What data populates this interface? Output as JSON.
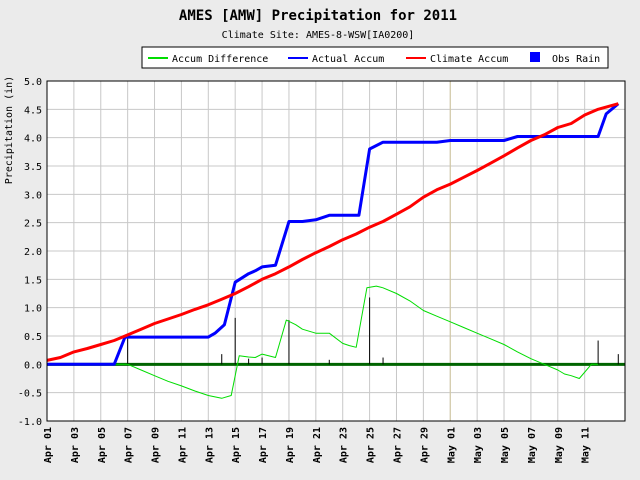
{
  "chart_data": {
    "type": "line",
    "title": "AMES [AMW] Precipitation for 2011",
    "subtitle": "Climate Site: AMES-8-WSW[IA0200]",
    "ylabel": "Precipitation (in)",
    "xlabel": "",
    "ylim": [
      -1.0,
      5.0
    ],
    "yticks": [
      "-1.0",
      "-0.5",
      "0.0",
      "0.5",
      "1.0",
      "1.5",
      "2.0",
      "2.5",
      "3.0",
      "3.5",
      "4.0",
      "4.5",
      "5.0"
    ],
    "xlim_days": [
      1,
      42
    ],
    "xticks": [
      {
        "day": 1,
        "label": "Apr 01"
      },
      {
        "day": 3,
        "label": "Apr 03"
      },
      {
        "day": 5,
        "label": "Apr 05"
      },
      {
        "day": 7,
        "label": "Apr 07"
      },
      {
        "day": 9,
        "label": "Apr 09"
      },
      {
        "day": 11,
        "label": "Apr 11"
      },
      {
        "day": 13,
        "label": "Apr 13"
      },
      {
        "day": 15,
        "label": "Apr 15"
      },
      {
        "day": 17,
        "label": "Apr 17"
      },
      {
        "day": 19,
        "label": "Apr 19"
      },
      {
        "day": 21,
        "label": "Apr 21"
      },
      {
        "day": 23,
        "label": "Apr 23"
      },
      {
        "day": 25,
        "label": "Apr 25"
      },
      {
        "day": 27,
        "label": "Apr 27"
      },
      {
        "day": 29,
        "label": "Apr 29"
      },
      {
        "day": 31,
        "label": "May 01"
      },
      {
        "day": 33,
        "label": "May 03"
      },
      {
        "day": 35,
        "label": "May 05"
      },
      {
        "day": 37,
        "label": "May 07"
      },
      {
        "day": 39,
        "label": "May 09"
      },
      {
        "day": 41,
        "label": "May 11"
      }
    ],
    "vline_day": 31,
    "grid": true,
    "legend_position": "top",
    "series": [
      {
        "name": "Accum Difference",
        "color": "#00dd00",
        "kind": "line",
        "points": [
          [
            6,
            0.0
          ],
          [
            7,
            0.0
          ],
          [
            8,
            -0.1
          ],
          [
            9,
            -0.2
          ],
          [
            10,
            -0.3
          ],
          [
            11,
            -0.38
          ],
          [
            12,
            -0.47
          ],
          [
            13,
            -0.55
          ],
          [
            14,
            -0.6
          ],
          [
            14.7,
            -0.55
          ],
          [
            15.3,
            0.15
          ],
          [
            16,
            0.13
          ],
          [
            16.5,
            0.12
          ],
          [
            17,
            0.18
          ],
          [
            18,
            0.12
          ],
          [
            18.8,
            0.78
          ],
          [
            19.5,
            0.7
          ],
          [
            20,
            0.62
          ],
          [
            21,
            0.55
          ],
          [
            22,
            0.55
          ],
          [
            23,
            0.37
          ],
          [
            23.5,
            0.33
          ],
          [
            24,
            0.3
          ],
          [
            24.8,
            1.35
          ],
          [
            25.5,
            1.38
          ],
          [
            26,
            1.35
          ],
          [
            27,
            1.25
          ],
          [
            28,
            1.12
          ],
          [
            29,
            0.95
          ],
          [
            30,
            0.85
          ],
          [
            31,
            0.75
          ],
          [
            32,
            0.65
          ],
          [
            33,
            0.55
          ],
          [
            34,
            0.45
          ],
          [
            35,
            0.35
          ],
          [
            36,
            0.22
          ],
          [
            37,
            0.1
          ],
          [
            38,
            0.0
          ],
          [
            39,
            -0.1
          ],
          [
            39.5,
            -0.17
          ],
          [
            40,
            -0.2
          ],
          [
            40.6,
            -0.25
          ],
          [
            41.5,
            0.0
          ],
          [
            42,
            0.0
          ]
        ]
      },
      {
        "name": "Actual Accum",
        "color": "#0000ff",
        "kind": "line",
        "points": [
          [
            1,
            0
          ],
          [
            6,
            0
          ],
          [
            6.8,
            0.48
          ],
          [
            7,
            0.48
          ],
          [
            13,
            0.48
          ],
          [
            13.5,
            0.55
          ],
          [
            14.2,
            0.7
          ],
          [
            15,
            1.45
          ],
          [
            16,
            1.6
          ],
          [
            16.5,
            1.65
          ],
          [
            17,
            1.72
          ],
          [
            18,
            1.75
          ],
          [
            19,
            2.52
          ],
          [
            20,
            2.52
          ],
          [
            21,
            2.55
          ],
          [
            22,
            2.63
          ],
          [
            23,
            2.63
          ],
          [
            24.2,
            2.63
          ],
          [
            25,
            3.8
          ],
          [
            26,
            3.92
          ],
          [
            30,
            3.92
          ],
          [
            31,
            3.95
          ],
          [
            35,
            3.95
          ],
          [
            36,
            4.02
          ],
          [
            42,
            4.02
          ],
          [
            42.6,
            4.42
          ],
          [
            43.5,
            4.6
          ]
        ]
      },
      {
        "name": "Climate Accum",
        "color": "#ff0000",
        "kind": "line",
        "points": [
          [
            1,
            0.07
          ],
          [
            2,
            0.12
          ],
          [
            3,
            0.22
          ],
          [
            4,
            0.28
          ],
          [
            5,
            0.35
          ],
          [
            6,
            0.42
          ],
          [
            7,
            0.52
          ],
          [
            8,
            0.62
          ],
          [
            9,
            0.72
          ],
          [
            10,
            0.8
          ],
          [
            11,
            0.88
          ],
          [
            12,
            0.97
          ],
          [
            13,
            1.05
          ],
          [
            14,
            1.15
          ],
          [
            15,
            1.25
          ],
          [
            16,
            1.37
          ],
          [
            17,
            1.5
          ],
          [
            18,
            1.6
          ],
          [
            19,
            1.72
          ],
          [
            20,
            1.85
          ],
          [
            21,
            1.97
          ],
          [
            22,
            2.08
          ],
          [
            23,
            2.2
          ],
          [
            24,
            2.3
          ],
          [
            25,
            2.42
          ],
          [
            26,
            2.52
          ],
          [
            27,
            2.65
          ],
          [
            28,
            2.78
          ],
          [
            29,
            2.95
          ],
          [
            30,
            3.08
          ],
          [
            31,
            3.18
          ],
          [
            32,
            3.3
          ],
          [
            33,
            3.42
          ],
          [
            34,
            3.55
          ],
          [
            35,
            3.68
          ],
          [
            36,
            3.82
          ],
          [
            37,
            3.95
          ],
          [
            38,
            4.05
          ],
          [
            39,
            4.18
          ],
          [
            40,
            4.25
          ],
          [
            41,
            4.4
          ],
          [
            42,
            4.5
          ],
          [
            43.5,
            4.6
          ]
        ]
      },
      {
        "name": "Obs Rain",
        "color": "#0000ff",
        "kind": "bar",
        "points": [
          [
            7,
            0.48
          ],
          [
            14,
            0.18
          ],
          [
            15,
            0.82
          ],
          [
            16,
            0.1
          ],
          [
            17,
            0.12
          ],
          [
            19,
            0.78
          ],
          [
            22,
            0.08
          ],
          [
            25,
            1.18
          ],
          [
            26,
            0.12
          ],
          [
            42,
            0.42
          ],
          [
            43.5,
            0.18
          ]
        ]
      }
    ]
  }
}
